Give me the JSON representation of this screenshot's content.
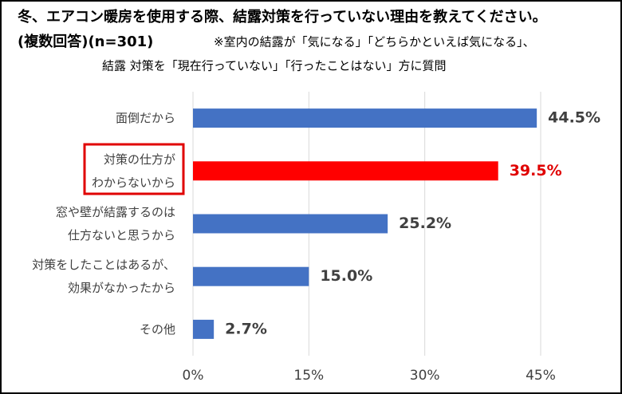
{
  "chart_data": {
    "type": "barh",
    "title": "冬、エアコン暖房を使用する際、結露対策を行っていない理由を教えてください。",
    "subtitle": "(複数回答)(n=301)",
    "note": [
      "※室内の結露が「気になる」「どちらかといえば気になる」、",
      "結露 対策を「現在行っていない」「行ったことはない」方に質問"
    ],
    "categories": [
      [
        "面倒だから"
      ],
      [
        "対策の仕方が",
        "わからないから"
      ],
      [
        "窓や壁が結露するのは",
        "仕方ないと思うから"
      ],
      [
        "対策をしたことはあるが、",
        "効果がなかったから"
      ],
      [
        "その他"
      ]
    ],
    "values": [
      44.5,
      39.5,
      25.2,
      15.0,
      2.7
    ],
    "value_labels": [
      "44.5%",
      "39.5%",
      "25.2%",
      "15.0%",
      "2.7%"
    ],
    "colors": [
      "#4472c4",
      "#ff0000",
      "#4472c4",
      "#4472c4",
      "#4472c4"
    ],
    "xlim": [
      0,
      45
    ],
    "xticks": [
      {
        "value": 0,
        "label": "0%"
      },
      {
        "value": 15,
        "label": "15%"
      },
      {
        "value": 30,
        "label": "30%"
      },
      {
        "value": 45,
        "label": "45%"
      }
    ],
    "grid": true
  }
}
